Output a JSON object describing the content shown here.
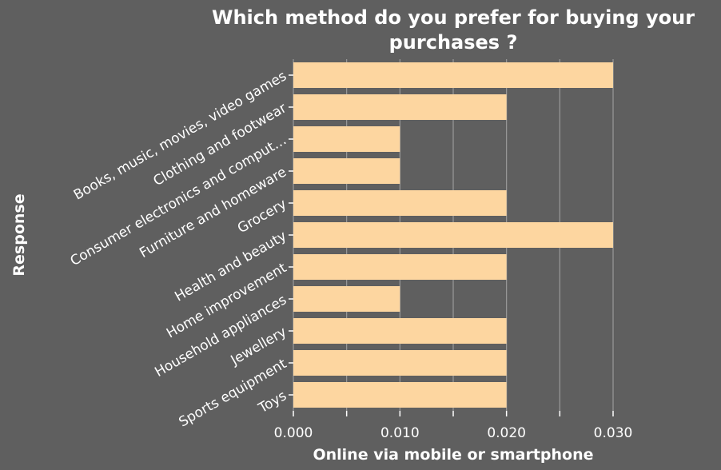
{
  "chart_data": {
    "type": "bar",
    "orientation": "horizontal",
    "title": "Which method do you prefer for buying your purchases ?",
    "title_lines": [
      "Which method do you prefer for buying your",
      "purchases ?"
    ],
    "xlabel": "Online via mobile or smartphone",
    "ylabel": "Response",
    "categories": [
      "Books, music, movies, video games",
      "Clothing and footwear",
      "Consumer electronics and comput…",
      "Furniture and homeware",
      "Grocery",
      "Health and beauty",
      "Home improvement",
      "Household appliances",
      "Jewellery",
      "Sports equipment",
      "Toys"
    ],
    "values": [
      0.03,
      0.02,
      0.01,
      0.01,
      0.02,
      0.03,
      0.02,
      0.01,
      0.02,
      0.02,
      0.02
    ],
    "xlim": [
      0,
      0.03
    ],
    "xticks": [
      0,
      0.005,
      0.01,
      0.015,
      0.02,
      0.025,
      0.03
    ],
    "xtick_labels": [
      "0.000",
      "",
      "0.010",
      "",
      "0.020",
      "",
      "0.030"
    ],
    "grid": true,
    "colors": {
      "background": "#5f5f5f",
      "bar": "#fdd6a0",
      "grid": "#9a9a9a",
      "text": "#ffffff",
      "axis": "#ffffff"
    }
  }
}
